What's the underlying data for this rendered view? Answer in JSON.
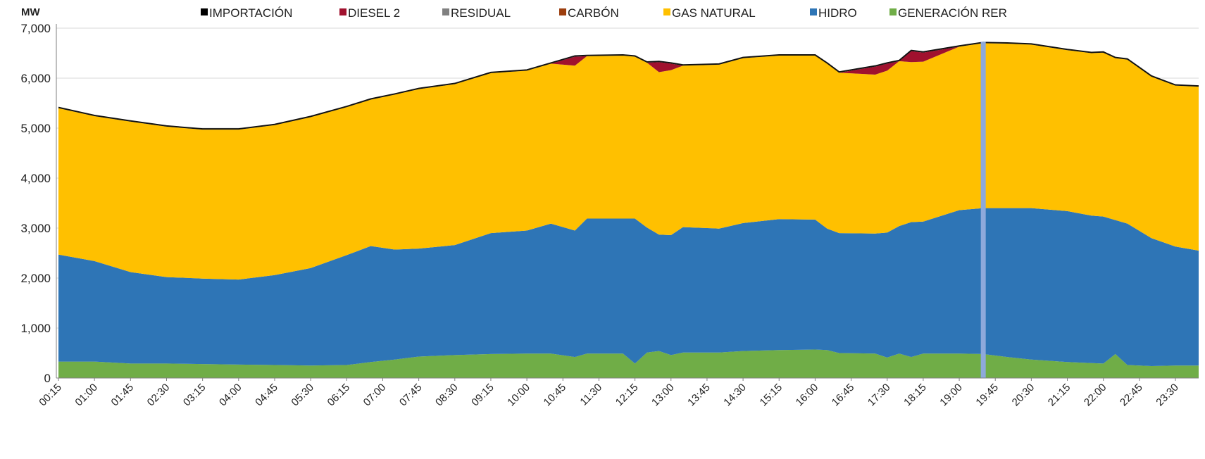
{
  "chart_data": {
    "type": "area",
    "stacked": true,
    "ylabel": "MW",
    "ylim": [
      0,
      7000
    ],
    "yticks": [
      "0",
      "1,000",
      "2,000",
      "3,000",
      "4,000",
      "5,000",
      "6,000",
      "7,000"
    ],
    "yticks_values": [
      0,
      1000,
      2000,
      3000,
      4000,
      5000,
      6000,
      7000
    ],
    "x_tick_labels": [
      "00:15",
      "01:00",
      "01:45",
      "02:30",
      "03:15",
      "04:00",
      "04:45",
      "05:30",
      "06:15",
      "07:00",
      "07:45",
      "08:30",
      "09:15",
      "10:00",
      "10:45",
      "11:30",
      "12:15",
      "13:00",
      "13:45",
      "14:30",
      "15:15",
      "16:00",
      "16:45",
      "17:30",
      "18:15",
      "19:00",
      "19:45",
      "20:30",
      "21:15",
      "22:00",
      "22:45",
      "23:30"
    ],
    "legend": {
      "placement": "top"
    },
    "marker_time": "19:30",
    "series_colors": {
      "IMPORTACIÓN": "#000000",
      "DIESEL 2": "#a0112e",
      "RESIDUAL": "#808080",
      "CARBÓN": "#9c3e0e",
      "GAS NATURAL": "#ffc000",
      "HIDRO": "#2e75b6",
      "GENERACIÓN RER": "#70ad47"
    },
    "legend_order": [
      "IMPORTACIÓN",
      "DIESEL 2",
      "RESIDUAL",
      "CARBÓN",
      "GAS NATURAL",
      "HIDRO",
      "GENERACIÓN RER"
    ],
    "series": [
      {
        "name": "GENERACIÓN RER",
        "points": [
          [
            "00:15",
            330
          ],
          [
            "01:00",
            330
          ],
          [
            "01:45",
            290
          ],
          [
            "02:30",
            290
          ],
          [
            "03:15",
            280
          ],
          [
            "04:00",
            270
          ],
          [
            "04:45",
            260
          ],
          [
            "05:30",
            250
          ],
          [
            "06:15",
            260
          ],
          [
            "06:45",
            320
          ],
          [
            "07:15",
            370
          ],
          [
            "07:45",
            430
          ],
          [
            "08:30",
            460
          ],
          [
            "09:15",
            480
          ],
          [
            "10:00",
            490
          ],
          [
            "10:30",
            490
          ],
          [
            "11:00",
            420
          ],
          [
            "11:15",
            490
          ],
          [
            "12:00",
            490
          ],
          [
            "12:15",
            290
          ],
          [
            "12:30",
            510
          ],
          [
            "12:45",
            540
          ],
          [
            "13:00",
            460
          ],
          [
            "13:15",
            510
          ],
          [
            "14:00",
            510
          ],
          [
            "14:30",
            540
          ],
          [
            "15:15",
            560
          ],
          [
            "16:00",
            570
          ],
          [
            "16:15",
            560
          ],
          [
            "16:30",
            500
          ],
          [
            "17:15",
            490
          ],
          [
            "17:30",
            410
          ],
          [
            "17:45",
            490
          ],
          [
            "18:00",
            420
          ],
          [
            "18:15",
            490
          ],
          [
            "19:00",
            490
          ],
          [
            "19:30",
            480
          ],
          [
            "20:00",
            420
          ],
          [
            "20:30",
            370
          ],
          [
            "21:15",
            320
          ],
          [
            "21:45",
            300
          ],
          [
            "22:00",
            290
          ],
          [
            "22:15",
            480
          ],
          [
            "22:30",
            260
          ],
          [
            "23:00",
            240
          ],
          [
            "23:30",
            250
          ],
          [
            "23:59",
            250
          ]
        ]
      },
      {
        "name": "HIDRO",
        "points": [
          [
            "00:15",
            2140
          ],
          [
            "01:00",
            2010
          ],
          [
            "01:45",
            1830
          ],
          [
            "02:30",
            1730
          ],
          [
            "03:15",
            1710
          ],
          [
            "04:00",
            1700
          ],
          [
            "04:45",
            1800
          ],
          [
            "05:30",
            1950
          ],
          [
            "06:15",
            2200
          ],
          [
            "06:45",
            2320
          ],
          [
            "07:15",
            2200
          ],
          [
            "07:45",
            2160
          ],
          [
            "08:30",
            2200
          ],
          [
            "09:15",
            2420
          ],
          [
            "10:00",
            2460
          ],
          [
            "10:30",
            2600
          ],
          [
            "11:00",
            2530
          ],
          [
            "11:15",
            2700
          ],
          [
            "12:00",
            2700
          ],
          [
            "12:15",
            2900
          ],
          [
            "12:30",
            2500
          ],
          [
            "12:45",
            2330
          ],
          [
            "13:00",
            2400
          ],
          [
            "13:15",
            2510
          ],
          [
            "14:00",
            2480
          ],
          [
            "14:30",
            2560
          ],
          [
            "15:15",
            2620
          ],
          [
            "16:00",
            2600
          ],
          [
            "16:15",
            2430
          ],
          [
            "16:30",
            2400
          ],
          [
            "17:15",
            2400
          ],
          [
            "17:30",
            2500
          ],
          [
            "17:45",
            2550
          ],
          [
            "18:00",
            2700
          ],
          [
            "18:15",
            2640
          ],
          [
            "19:00",
            2870
          ],
          [
            "19:30",
            2920
          ],
          [
            "20:00",
            2980
          ],
          [
            "20:30",
            3030
          ],
          [
            "21:15",
            3020
          ],
          [
            "21:45",
            2950
          ],
          [
            "22:00",
            2940
          ],
          [
            "22:15",
            2680
          ],
          [
            "22:30",
            2830
          ],
          [
            "23:00",
            2560
          ],
          [
            "23:30",
            2380
          ],
          [
            "23:59",
            2300
          ]
        ]
      },
      {
        "name": "GAS NATURAL",
        "points": [
          [
            "00:15",
            2930
          ],
          [
            "01:00",
            2900
          ],
          [
            "01:45",
            3010
          ],
          [
            "02:30",
            3010
          ],
          [
            "03:15",
            2980
          ],
          [
            "04:00",
            3000
          ],
          [
            "04:45",
            3000
          ],
          [
            "05:30",
            3020
          ],
          [
            "06:15",
            2960
          ],
          [
            "06:45",
            2930
          ],
          [
            "07:15",
            3100
          ],
          [
            "07:45",
            3190
          ],
          [
            "08:30",
            3220
          ],
          [
            "09:15",
            3200
          ],
          [
            "10:00",
            3200
          ],
          [
            "10:30",
            3200
          ],
          [
            "11:00",
            3300
          ],
          [
            "11:15",
            3250
          ],
          [
            "12:00",
            3260
          ],
          [
            "12:15",
            3240
          ],
          [
            "12:30",
            3300
          ],
          [
            "12:45",
            3250
          ],
          [
            "13:00",
            3300
          ],
          [
            "13:15",
            3230
          ],
          [
            "14:00",
            3280
          ],
          [
            "14:30",
            3300
          ],
          [
            "15:15",
            3270
          ],
          [
            "16:00",
            3280
          ],
          [
            "16:15",
            3300
          ],
          [
            "16:30",
            3210
          ],
          [
            "17:15",
            3180
          ],
          [
            "17:30",
            3240
          ],
          [
            "17:45",
            3300
          ],
          [
            "18:00",
            3200
          ],
          [
            "18:15",
            3200
          ],
          [
            "19:00",
            3270
          ],
          [
            "19:30",
            3300
          ],
          [
            "20:00",
            3290
          ],
          [
            "20:30",
            3270
          ],
          [
            "21:15",
            3220
          ],
          [
            "21:45",
            3250
          ],
          [
            "22:00",
            3280
          ],
          [
            "22:15",
            3240
          ],
          [
            "22:30",
            3280
          ],
          [
            "23:00",
            3230
          ],
          [
            "23:30",
            3220
          ],
          [
            "23:59",
            3280
          ]
        ]
      },
      {
        "name": "DIESEL 2",
        "points": [
          [
            "00:15",
            0
          ],
          [
            "01:00",
            0
          ],
          [
            "01:45",
            0
          ],
          [
            "02:30",
            0
          ],
          [
            "03:15",
            0
          ],
          [
            "04:00",
            0
          ],
          [
            "04:45",
            0
          ],
          [
            "05:30",
            0
          ],
          [
            "06:15",
            0
          ],
          [
            "06:45",
            0
          ],
          [
            "07:15",
            0
          ],
          [
            "07:45",
            0
          ],
          [
            "08:30",
            0
          ],
          [
            "09:15",
            0
          ],
          [
            "10:00",
            0
          ],
          [
            "10:30",
            0
          ],
          [
            "11:00",
            180
          ],
          [
            "11:15",
            0
          ],
          [
            "12:00",
            0
          ],
          [
            "12:15",
            0
          ],
          [
            "12:30",
            0
          ],
          [
            "12:45",
            200
          ],
          [
            "13:00",
            130
          ],
          [
            "13:15",
            0
          ],
          [
            "14:00",
            0
          ],
          [
            "14:30",
            0
          ],
          [
            "15:15",
            0
          ],
          [
            "16:00",
            0
          ],
          [
            "16:15",
            0
          ],
          [
            "16:30",
            0
          ],
          [
            "17:15",
            160
          ],
          [
            "17:30",
            140
          ],
          [
            "17:45",
            0
          ],
          [
            "18:00",
            220
          ],
          [
            "18:15",
            180
          ],
          [
            "19:00",
            0
          ],
          [
            "19:30",
            0
          ],
          [
            "20:00",
            0
          ],
          [
            "20:30",
            0
          ],
          [
            "21:15",
            0
          ],
          [
            "21:45",
            0
          ],
          [
            "22:00",
            0
          ],
          [
            "22:15",
            0
          ],
          [
            "22:30",
            0
          ],
          [
            "23:00",
            0
          ],
          [
            "23:30",
            0
          ],
          [
            "23:59",
            0
          ]
        ]
      },
      {
        "name": "RESIDUAL",
        "points": [
          [
            "00:15",
            0
          ],
          [
            "23:59",
            0
          ]
        ]
      },
      {
        "name": "CARBÓN",
        "points": [
          [
            "00:15",
            0
          ],
          [
            "23:59",
            0
          ]
        ]
      },
      {
        "name": "IMPORTACIÓN",
        "points": [
          [
            "00:15",
            0
          ],
          [
            "23:59",
            0
          ]
        ]
      }
    ]
  }
}
